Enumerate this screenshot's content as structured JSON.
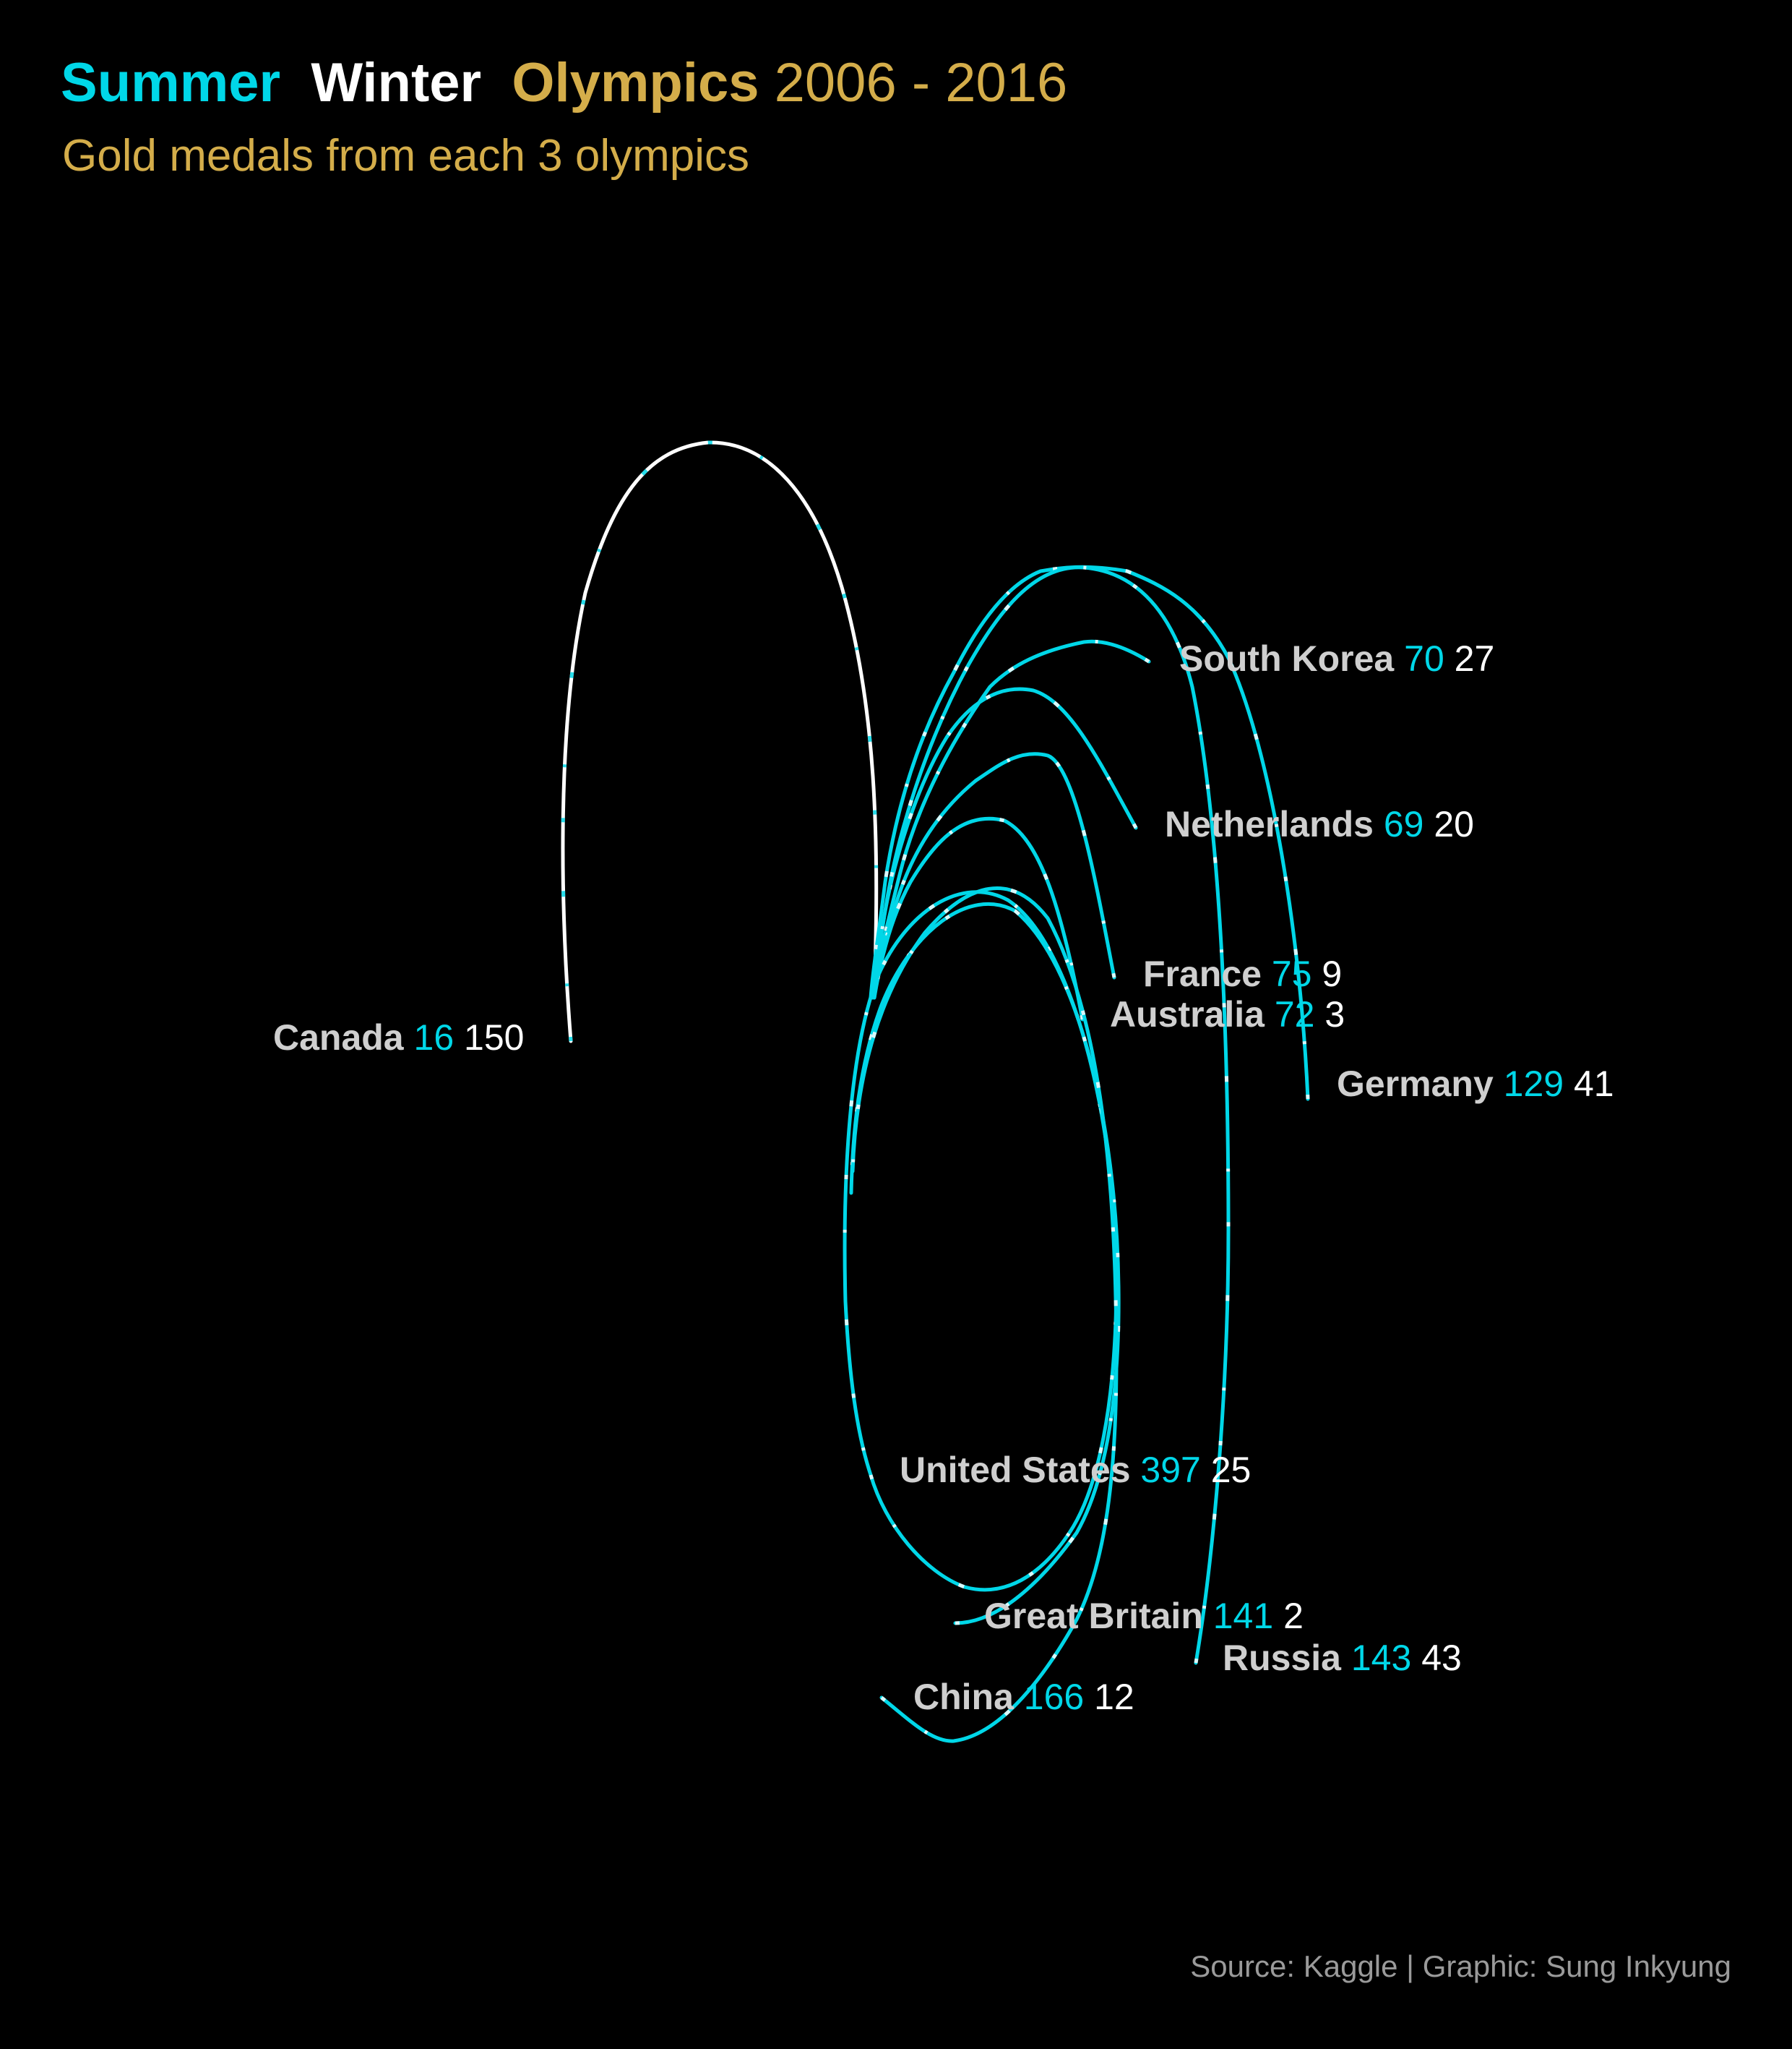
{
  "title": {
    "summer": "Summer",
    "winter": "Winter",
    "olympics": "Olympics",
    "years": "2006 - 2016"
  },
  "subtitle": "Gold medals from each 3 olympics",
  "caption": "Source: Kaggle | Graphic: Sung Inkyung",
  "colors": {
    "summer": "#00d7e8",
    "winter": "#ffffff",
    "accent": "#d4ad4a",
    "country_label": "#cfcfcf",
    "background": "#000000"
  },
  "chart_data": {
    "type": "spiral",
    "series_legend": [
      "Summer",
      "Winter"
    ],
    "countries": [
      {
        "name": "Canada",
        "summer": 16,
        "winter": 150
      },
      {
        "name": "South Korea",
        "summer": 70,
        "winter": 27
      },
      {
        "name": "Netherlands",
        "summer": 69,
        "winter": 20
      },
      {
        "name": "France",
        "summer": 75,
        "winter": 9
      },
      {
        "name": "Australia",
        "summer": 72,
        "winter": 3
      },
      {
        "name": "Germany",
        "summer": 129,
        "winter": 41
      },
      {
        "name": "United States",
        "summer": 397,
        "winter": 25
      },
      {
        "name": "Great Britain",
        "summer": 141,
        "winter": 2
      },
      {
        "name": "Russia",
        "summer": 143,
        "winter": 43
      },
      {
        "name": "China",
        "summer": 166,
        "winter": 12
      }
    ]
  }
}
